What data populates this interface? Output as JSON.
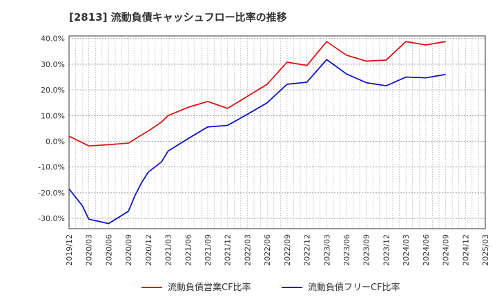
{
  "chart_data": {
    "type": "line",
    "title": "[2813]  流動負債キャッシュフロー比率の推移",
    "x": [
      "2019/12",
      "2020/03",
      "2020/06",
      "2020/09",
      "2020/10",
      "2020/11",
      "2020/12",
      "2021/03",
      "2021/06",
      "2021/09",
      "2021/12",
      "2022/03",
      "2022/06",
      "2022/09",
      "2022/12",
      "2023/03",
      "2023/06",
      "2023/09",
      "2023/12",
      "2024/03",
      "2024/06",
      "2024/09"
    ],
    "x_ticks": [
      "2019/12",
      "2020/03",
      "2020/06",
      "2020/09",
      "2020/12",
      "2021/03",
      "2021/06",
      "2021/09",
      "2021/12",
      "2022/03",
      "2022/06",
      "2022/09",
      "2022/12",
      "2023/03",
      "2023/06",
      "2023/09",
      "2023/12",
      "2024/03",
      "2024/06",
      "2024/09",
      "2024/12",
      "2025/03"
    ],
    "y_ticks": [
      "40.0%",
      "30.0%",
      "20.0%",
      "10.0%",
      "0.0%",
      "-10.0%",
      "-20.0%",
      "-30.0%"
    ],
    "ylim": [
      -34,
      41
    ],
    "series": [
      {
        "name": "流動負債営業CF比率",
        "color": "#dd1111",
        "points": [
          [
            "2019/12",
            2.0
          ],
          [
            "2020/03",
            -1.8
          ],
          [
            "2020/06",
            -1.3
          ],
          [
            "2020/09",
            -0.7
          ],
          [
            "2020/11",
            2.5
          ],
          [
            "2020/12",
            4.0
          ],
          [
            "2021/02",
            7.5
          ],
          [
            "2021/03",
            10.0
          ],
          [
            "2021/06",
            13.2
          ],
          [
            "2021/09",
            15.5
          ],
          [
            "2021/12",
            12.8
          ],
          [
            "2022/03",
            17.5
          ],
          [
            "2022/06",
            22.2
          ],
          [
            "2022/09",
            30.8
          ],
          [
            "2022/12",
            29.5
          ],
          [
            "2023/03",
            38.8
          ],
          [
            "2023/06",
            33.5
          ],
          [
            "2023/09",
            31.2
          ],
          [
            "2023/12",
            31.6
          ],
          [
            "2024/03",
            38.8
          ],
          [
            "2024/06",
            37.5
          ],
          [
            "2024/09",
            38.8
          ]
        ]
      },
      {
        "name": "流動負債フリーCF比率",
        "color": "#1111cc",
        "points": [
          [
            "2019/12",
            -18.5
          ],
          [
            "2020/02",
            -25.0
          ],
          [
            "2020/03",
            -30.3
          ],
          [
            "2020/06",
            -32.0
          ],
          [
            "2020/09",
            -27.2
          ],
          [
            "2020/10",
            -21.0
          ],
          [
            "2020/11",
            -16.0
          ],
          [
            "2020/12",
            -12.0
          ],
          [
            "2021/02",
            -8.0
          ],
          [
            "2021/03",
            -3.8
          ],
          [
            "2021/06",
            1.0
          ],
          [
            "2021/09",
            5.6
          ],
          [
            "2021/12",
            6.2
          ],
          [
            "2022/03",
            10.5
          ],
          [
            "2022/06",
            15.0
          ],
          [
            "2022/09",
            22.2
          ],
          [
            "2022/12",
            23.0
          ],
          [
            "2023/03",
            31.8
          ],
          [
            "2023/06",
            26.2
          ],
          [
            "2023/09",
            22.8
          ],
          [
            "2023/12",
            21.6
          ],
          [
            "2024/03",
            25.0
          ],
          [
            "2024/06",
            24.7
          ],
          [
            "2024/09",
            26.0
          ]
        ]
      }
    ],
    "legend": {
      "position": "bottom",
      "items": [
        "流動負債営業CF比率",
        "流動負債フリーCF比率"
      ]
    }
  }
}
